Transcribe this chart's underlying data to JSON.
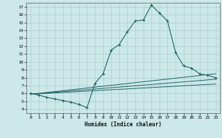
{
  "title": "",
  "xlabel": "Humidex (Indice chaleur)",
  "bg_color": "#cce8e8",
  "grid_color": "#aacccc",
  "line_color": "#1a6060",
  "xlim": [
    -0.5,
    23.5
  ],
  "ylim": [
    3.5,
    17.5
  ],
  "xticks": [
    0,
    1,
    2,
    3,
    4,
    5,
    6,
    7,
    8,
    9,
    10,
    11,
    12,
    13,
    14,
    15,
    16,
    17,
    18,
    19,
    20,
    21,
    22,
    23
  ],
  "yticks": [
    4,
    5,
    6,
    7,
    8,
    9,
    10,
    11,
    12,
    13,
    14,
    15,
    16,
    17
  ],
  "humidex_x": [
    0,
    1,
    2,
    3,
    4,
    5,
    6,
    7,
    8,
    9,
    10,
    11,
    12,
    13,
    14,
    15,
    16,
    17,
    18,
    19,
    20,
    21,
    22,
    23
  ],
  "humidex_y": [
    6.0,
    5.8,
    5.5,
    5.3,
    5.1,
    4.9,
    4.6,
    4.2,
    7.3,
    8.5,
    11.5,
    12.2,
    13.8,
    15.2,
    15.3,
    17.2,
    16.2,
    15.2,
    11.2,
    9.5,
    9.2,
    8.5,
    8.3,
    8.0
  ],
  "line1_x": [
    0,
    23
  ],
  "line1_y": [
    5.9,
    8.5
  ],
  "line2_x": [
    0,
    23
  ],
  "line2_y": [
    5.9,
    7.8
  ],
  "line3_x": [
    0,
    23
  ],
  "line3_y": [
    5.9,
    7.2
  ]
}
